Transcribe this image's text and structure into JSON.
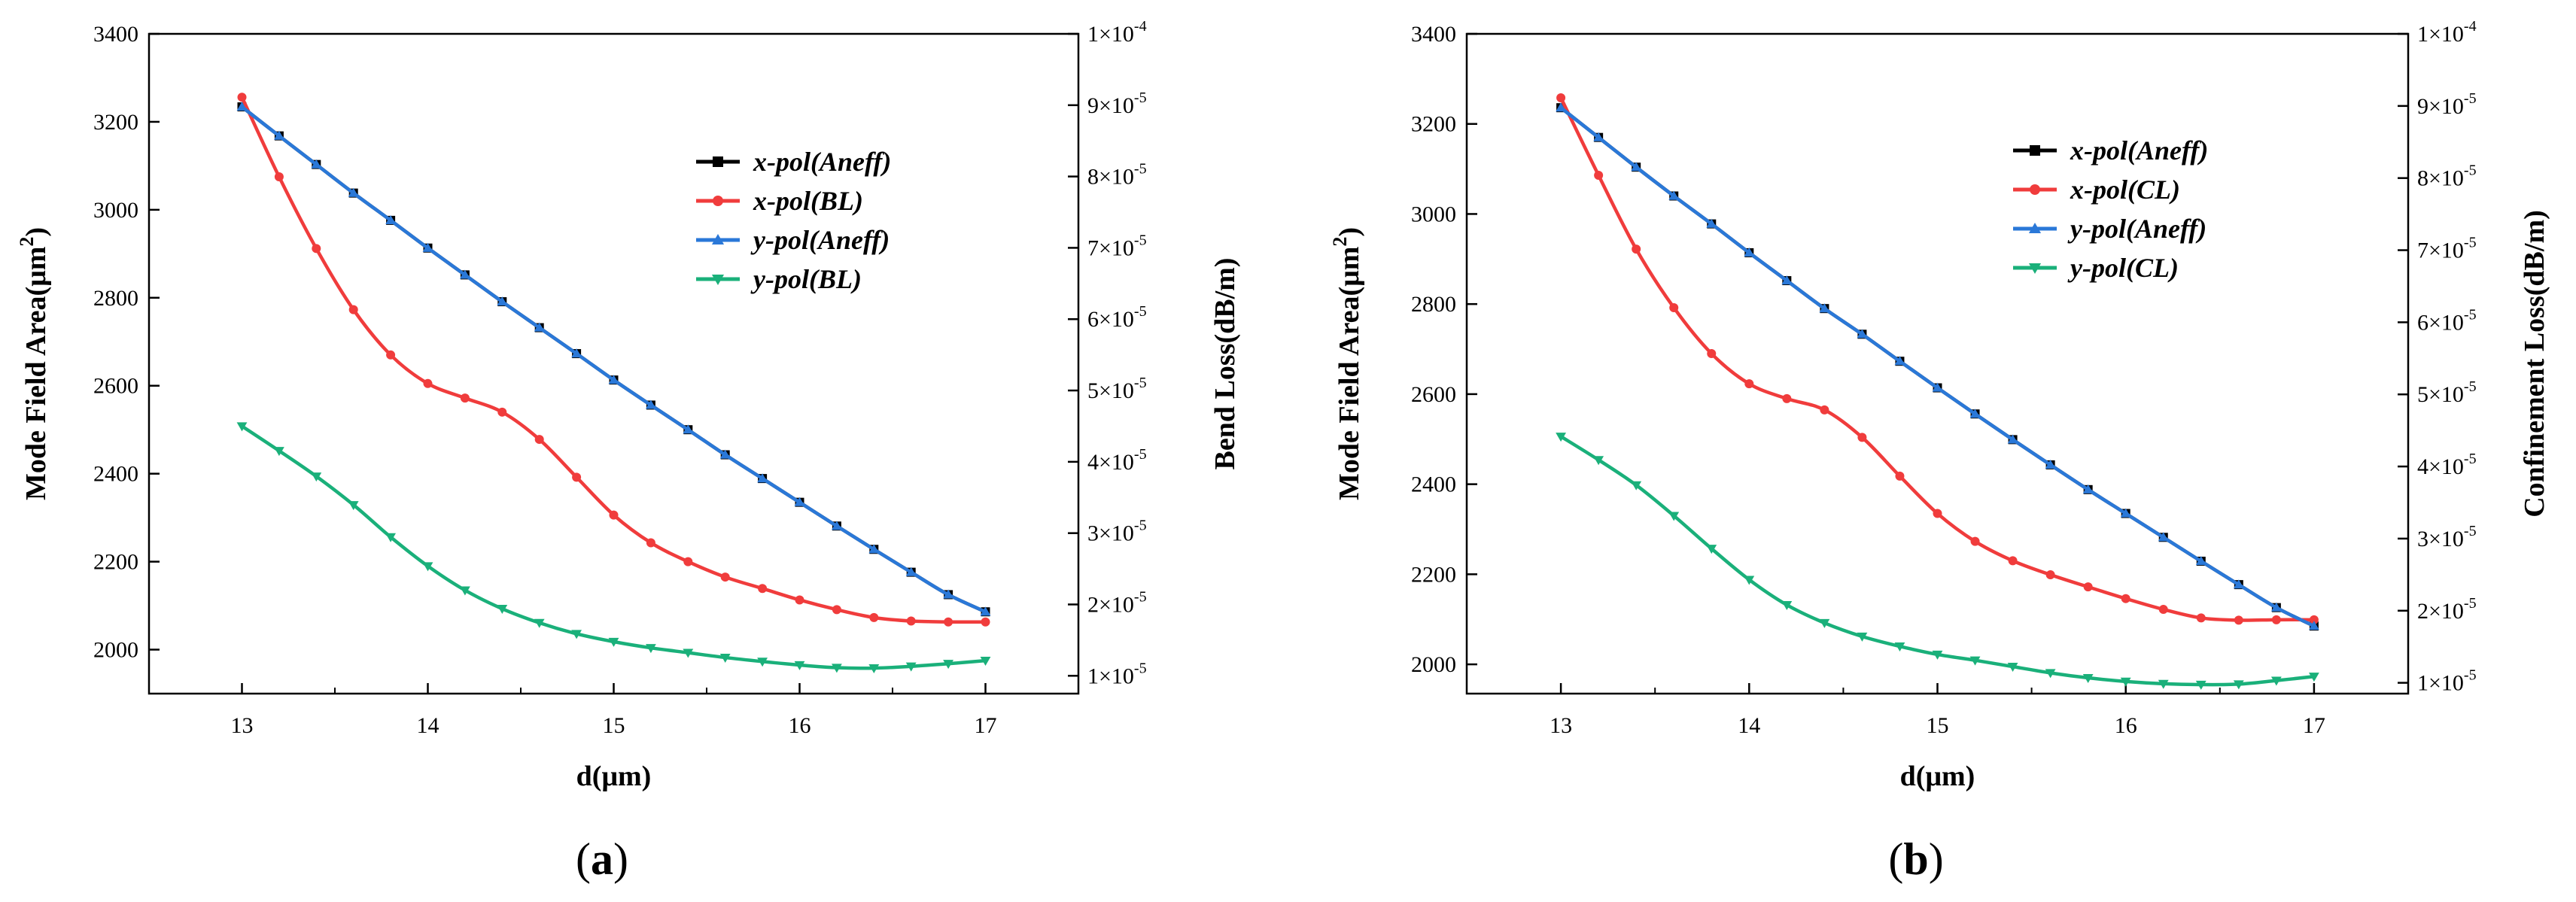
{
  "chart_data": [
    {
      "type": "line",
      "caption": "a",
      "xlabel": "d(μm)",
      "ylabel_left": "Mode Field Area(μm²)",
      "ylabel_left_text": "Mode Field Area(μm",
      "ylabel_left_sup": "2",
      "ylabel_left_close": ")",
      "ylabel_right": "Bend Loss(dB/m)",
      "xlim": [
        12.5,
        17.5
      ],
      "ylim_left": [
        1900,
        3400
      ],
      "ylim_right": [
        7.5e-06,
        0.0001
      ],
      "x_ticks": [
        "13",
        "14",
        "15",
        "16",
        "17"
      ],
      "y_ticks_left": [
        "2000",
        "2200",
        "2400",
        "2600",
        "2800",
        "3000",
        "3200",
        "3400"
      ],
      "y_ticks_right": [
        {
          "mant": "1",
          "exp": "-5"
        },
        {
          "mant": "2",
          "exp": "-5"
        },
        {
          "mant": "3",
          "exp": "-5"
        },
        {
          "mant": "4",
          "exp": "-5"
        },
        {
          "mant": "5",
          "exp": "-5"
        },
        {
          "mant": "6",
          "exp": "-5"
        },
        {
          "mant": "7",
          "exp": "-5"
        },
        {
          "mant": "8",
          "exp": "-5"
        },
        {
          "mant": "9",
          "exp": "-5"
        },
        {
          "mant": "1",
          "exp": "-4"
        }
      ],
      "x": [
        13.0,
        13.2,
        13.4,
        13.6,
        13.8,
        14.0,
        14.2,
        14.4,
        14.6,
        14.8,
        15.0,
        15.2,
        15.4,
        15.6,
        15.8,
        16.0,
        16.2,
        16.4,
        16.6,
        16.8,
        17.0
      ],
      "series": [
        {
          "name": "x-pol(Aneff)",
          "axis": "left",
          "color": "#000000",
          "marker": "square",
          "values": [
            3234,
            3168,
            3103,
            3038,
            2976,
            2913,
            2852,
            2791,
            2732,
            2673,
            2613,
            2556,
            2500,
            2443,
            2389,
            2335,
            2281,
            2228,
            2176,
            2125,
            2086
          ]
        },
        {
          "name": "x-pol(BL)",
          "axis": "left",
          "color": "#f03c3c",
          "marker": "circle",
          "values": [
            3256,
            3075,
            2912,
            2773,
            2670,
            2605,
            2572,
            2540,
            2478,
            2392,
            2306,
            2243,
            2200,
            2165,
            2139,
            2113,
            2091,
            2073,
            2065,
            2063,
            2063
          ]
        },
        {
          "name": "y-pol(Aneff)",
          "axis": "left",
          "color": "#2a78d8",
          "marker": "triangle-up",
          "values": [
            3234,
            3168,
            3103,
            3038,
            2976,
            2913,
            2852,
            2791,
            2732,
            2673,
            2613,
            2556,
            2500,
            2443,
            2389,
            2335,
            2281,
            2228,
            2176,
            2125,
            2086
          ]
        },
        {
          "name": "y-pol(BL)",
          "axis": "left",
          "color": "#1ab07a",
          "marker": "triangle-down",
          "values": [
            2508,
            2452,
            2394,
            2329,
            2256,
            2190,
            2135,
            2093,
            2061,
            2036,
            2018,
            2004,
            1993,
            1982,
            1973,
            1965,
            1959,
            1958,
            1962,
            1968,
            1975
          ]
        }
      ]
    },
    {
      "type": "line",
      "caption": "b",
      "xlabel": "d(μm)",
      "ylabel_left": "Mode Field Area(μm²)",
      "ylabel_left_text": "Mode Field Area(μm",
      "ylabel_left_sup": "2",
      "ylabel_left_close": ")",
      "ylabel_right": "Confinement Loss(dB/m)",
      "xlim": [
        12.5,
        17.5
      ],
      "ylim_left": [
        1935,
        3400
      ],
      "ylim_right": [
        8.5e-06,
        0.0001
      ],
      "x_ticks": [
        "13",
        "14",
        "15",
        "16",
        "17"
      ],
      "y_ticks_left": [
        "2000",
        "2200",
        "2400",
        "2600",
        "2800",
        "3000",
        "3200",
        "3400"
      ],
      "y_ticks_right": [
        {
          "mant": "1",
          "exp": "-5"
        },
        {
          "mant": "2",
          "exp": "-5"
        },
        {
          "mant": "3",
          "exp": "-5"
        },
        {
          "mant": "4",
          "exp": "-5"
        },
        {
          "mant": "5",
          "exp": "-5"
        },
        {
          "mant": "6",
          "exp": "-5"
        },
        {
          "mant": "7",
          "exp": "-5"
        },
        {
          "mant": "8",
          "exp": "-5"
        },
        {
          "mant": "9",
          "exp": "-5"
        },
        {
          "mant": "1",
          "exp": "-4"
        }
      ],
      "x": [
        13.0,
        13.2,
        13.4,
        13.6,
        13.8,
        14.0,
        14.2,
        14.4,
        14.6,
        14.8,
        15.0,
        15.2,
        15.4,
        15.6,
        15.8,
        16.0,
        16.2,
        16.4,
        16.6,
        16.8,
        17.0
      ],
      "series": [
        {
          "name": "x-pol(Aneff)",
          "axis": "left",
          "color": "#000000",
          "marker": "square",
          "values": [
            3236,
            3170,
            3104,
            3040,
            2978,
            2914,
            2852,
            2790,
            2733,
            2673,
            2614,
            2556,
            2499,
            2443,
            2388,
            2335,
            2282,
            2229,
            2177,
            2126,
            2085
          ]
        },
        {
          "name": "x-pol(CL)",
          "axis": "left",
          "color": "#f03c3c",
          "marker": "circle",
          "values": [
            3258,
            3086,
            2922,
            2792,
            2690,
            2623,
            2590,
            2565,
            2504,
            2418,
            2335,
            2273,
            2230,
            2199,
            2172,
            2146,
            2122,
            2103,
            2098,
            2099,
            2099
          ]
        },
        {
          "name": "y-pol(Aneff)",
          "axis": "left",
          "color": "#2a78d8",
          "marker": "triangle-up",
          "values": [
            3236,
            3170,
            3104,
            3040,
            2978,
            2914,
            2852,
            2790,
            2733,
            2673,
            2614,
            2556,
            2499,
            2443,
            2388,
            2335,
            2282,
            2229,
            2177,
            2126,
            2085
          ]
        },
        {
          "name": "y-pol(CL)",
          "axis": "left",
          "color": "#1ab07a",
          "marker": "triangle-down",
          "values": [
            2506,
            2454,
            2398,
            2330,
            2257,
            2188,
            2132,
            2092,
            2062,
            2040,
            2022,
            2009,
            1995,
            1981,
            1970,
            1962,
            1957,
            1955,
            1956,
            1964,
            1973
          ]
        }
      ]
    }
  ]
}
